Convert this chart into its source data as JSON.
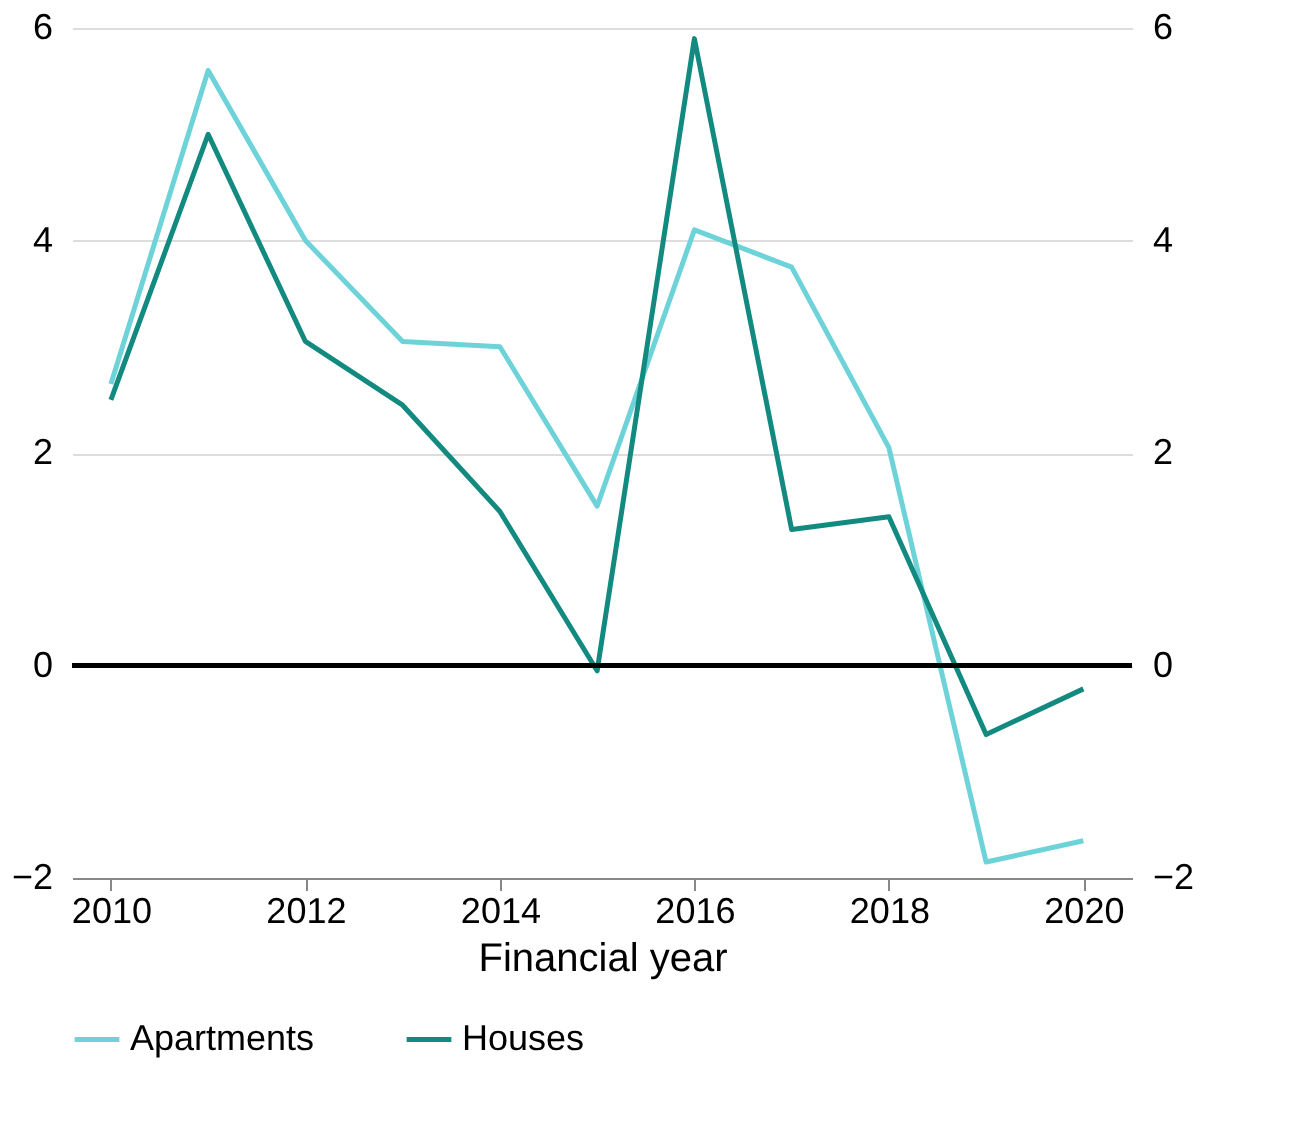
{
  "chart_data": {
    "type": "line",
    "xlabel": "Financial year",
    "x": [
      2010,
      2011,
      2012,
      2013,
      2014,
      2015,
      2016,
      2017,
      2018,
      2019,
      2020
    ],
    "series": [
      {
        "name": "Apartments",
        "color": "#6dd3d8",
        "values": [
          2.65,
          5.6,
          4.0,
          3.05,
          3.0,
          1.5,
          4.1,
          3.75,
          2.05,
          -1.85,
          -1.65
        ]
      },
      {
        "name": "Houses",
        "color": "#138a80",
        "values": [
          2.5,
          5.0,
          3.05,
          2.45,
          1.45,
          -0.05,
          5.9,
          1.28,
          1.4,
          -0.65,
          -0.22
        ]
      }
    ],
    "xlim": [
      2009.6,
      2020.5
    ],
    "xticks": [
      2010,
      2012,
      2014,
      2016,
      2018,
      2020
    ],
    "ylim": [
      -2,
      6
    ],
    "yticks": [
      -2,
      0,
      2,
      4,
      6
    ],
    "y2lim": [
      -2,
      6
    ],
    "y2ticks": [
      -2,
      0,
      2,
      4,
      6
    ],
    "ref_lines": [
      {
        "axis": "y2",
        "value": 0,
        "color": "#000000"
      }
    ],
    "grid": "y",
    "legend": "bottom",
    "marker": "none",
    "line_style": "solid"
  }
}
